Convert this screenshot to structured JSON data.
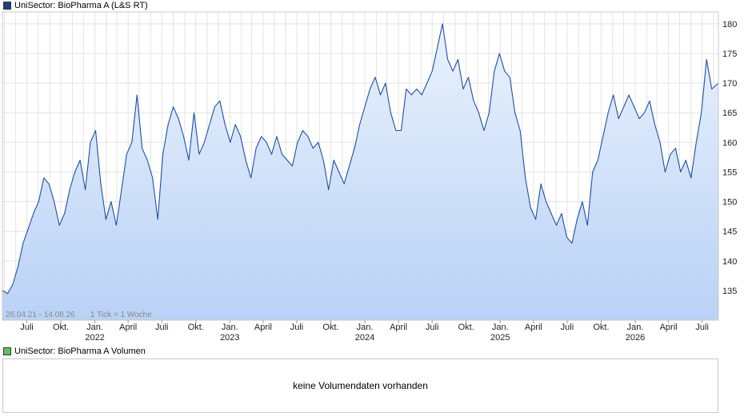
{
  "price_legend": "UniSector: BioPharma A (L&S RT)",
  "volume_legend": "UniSector: BioPharma A Volumen",
  "colors": {
    "line": "#1f4fa8",
    "fill_top": "#eaf2fc",
    "fill_bottom": "#b9d2f6",
    "grid": "#e3e3e3",
    "price_swatch": "#1d3c8a",
    "volume_swatch": "#5cc35c"
  },
  "date_range_note": "26.04.21 - 14.08.26",
  "tick_note": "1 Tick = 1 Woche",
  "volume_message": "keine Volumendaten vorhanden",
  "chart_data": {
    "type": "area",
    "x_range": [
      "2021-04-26",
      "2026-08-14"
    ],
    "ylim": [
      130,
      182
    ],
    "y_ticks": [
      135,
      140,
      145,
      150,
      155,
      160,
      165,
      170,
      175,
      180
    ],
    "x_tick_labels": [
      {
        "label": "Juli",
        "date": "2021-07-01"
      },
      {
        "label": "Okt.",
        "date": "2021-10-01"
      },
      {
        "label": "Jan.",
        "year": "2022",
        "date": "2022-01-01"
      },
      {
        "label": "April",
        "date": "2022-04-01"
      },
      {
        "label": "Juli",
        "date": "2022-07-01"
      },
      {
        "label": "Okt.",
        "date": "2022-10-01"
      },
      {
        "label": "Jan.",
        "year": "2023",
        "date": "2023-01-01"
      },
      {
        "label": "April",
        "date": "2023-04-01"
      },
      {
        "label": "Juli",
        "date": "2023-07-01"
      },
      {
        "label": "Okt.",
        "date": "2023-10-01"
      },
      {
        "label": "Jan.",
        "year": "2024",
        "date": "2024-01-01"
      },
      {
        "label": "April",
        "date": "2024-04-01"
      },
      {
        "label": "Juli",
        "date": "2024-07-01"
      },
      {
        "label": "Okt.",
        "date": "2024-10-01"
      },
      {
        "label": "Jan.",
        "year": "2025",
        "date": "2025-01-01"
      },
      {
        "label": "April",
        "date": "2025-04-01"
      },
      {
        "label": "Juli",
        "date": "2025-07-01"
      },
      {
        "label": "Okt.",
        "date": "2025-10-01"
      },
      {
        "label": "Jan.",
        "year": "2026",
        "date": "2026-01-01"
      },
      {
        "label": "April",
        "date": "2026-04-01"
      },
      {
        "label": "Juli",
        "date": "2026-07-01"
      }
    ],
    "series": [
      {
        "name": "UniSector: BioPharma A (L&S RT)",
        "points": [
          [
            "2021-04-26",
            135
          ],
          [
            "2021-05-10",
            134.5
          ],
          [
            "2021-05-24",
            136
          ],
          [
            "2021-06-07",
            139
          ],
          [
            "2021-06-21",
            143
          ],
          [
            "2021-07-05",
            145.5
          ],
          [
            "2021-07-19",
            148
          ],
          [
            "2021-08-02",
            150
          ],
          [
            "2021-08-16",
            154
          ],
          [
            "2021-08-30",
            153
          ],
          [
            "2021-09-13",
            150
          ],
          [
            "2021-09-27",
            146
          ],
          [
            "2021-10-11",
            148
          ],
          [
            "2021-10-25",
            152
          ],
          [
            "2021-11-08",
            155
          ],
          [
            "2021-11-22",
            157
          ],
          [
            "2021-12-06",
            152
          ],
          [
            "2021-12-20",
            160
          ],
          [
            "2022-01-03",
            162
          ],
          [
            "2022-01-17",
            153
          ],
          [
            "2022-01-31",
            147
          ],
          [
            "2022-02-14",
            150
          ],
          [
            "2022-02-28",
            146
          ],
          [
            "2022-03-14",
            152
          ],
          [
            "2022-03-28",
            158
          ],
          [
            "2022-04-11",
            160
          ],
          [
            "2022-04-25",
            168
          ],
          [
            "2022-05-09",
            159
          ],
          [
            "2022-05-23",
            157
          ],
          [
            "2022-06-06",
            154
          ],
          [
            "2022-06-20",
            147
          ],
          [
            "2022-07-04",
            158
          ],
          [
            "2022-07-18",
            163
          ],
          [
            "2022-08-01",
            166
          ],
          [
            "2022-08-15",
            164
          ],
          [
            "2022-08-29",
            161
          ],
          [
            "2022-09-12",
            157
          ],
          [
            "2022-09-26",
            165
          ],
          [
            "2022-10-10",
            158
          ],
          [
            "2022-10-24",
            160
          ],
          [
            "2022-11-07",
            163
          ],
          [
            "2022-11-21",
            166
          ],
          [
            "2022-12-05",
            167
          ],
          [
            "2022-12-19",
            163
          ],
          [
            "2023-01-02",
            160
          ],
          [
            "2023-01-16",
            163
          ],
          [
            "2023-01-30",
            161
          ],
          [
            "2023-02-13",
            157
          ],
          [
            "2023-02-27",
            154
          ],
          [
            "2023-03-13",
            159
          ],
          [
            "2023-03-27",
            161
          ],
          [
            "2023-04-10",
            160
          ],
          [
            "2023-04-24",
            158
          ],
          [
            "2023-05-08",
            161
          ],
          [
            "2023-05-22",
            158
          ],
          [
            "2023-06-05",
            157
          ],
          [
            "2023-06-19",
            156
          ],
          [
            "2023-07-03",
            160
          ],
          [
            "2023-07-17",
            162
          ],
          [
            "2023-07-31",
            161
          ],
          [
            "2023-08-14",
            159
          ],
          [
            "2023-08-28",
            160
          ],
          [
            "2023-09-11",
            157
          ],
          [
            "2023-09-25",
            152
          ],
          [
            "2023-10-09",
            157
          ],
          [
            "2023-10-23",
            155
          ],
          [
            "2023-11-06",
            153
          ],
          [
            "2023-11-20",
            156
          ],
          [
            "2023-12-04",
            159
          ],
          [
            "2023-12-18",
            163
          ],
          [
            "2024-01-01",
            166
          ],
          [
            "2024-01-15",
            169
          ],
          [
            "2024-01-29",
            171
          ],
          [
            "2024-02-12",
            168
          ],
          [
            "2024-02-26",
            170
          ],
          [
            "2024-03-11",
            165
          ],
          [
            "2024-03-25",
            162
          ],
          [
            "2024-04-08",
            162
          ],
          [
            "2024-04-22",
            169
          ],
          [
            "2024-05-06",
            168
          ],
          [
            "2024-05-20",
            169
          ],
          [
            "2024-06-03",
            168
          ],
          [
            "2024-06-17",
            170
          ],
          [
            "2024-07-01",
            172
          ],
          [
            "2024-07-15",
            176
          ],
          [
            "2024-07-29",
            180
          ],
          [
            "2024-08-12",
            174
          ],
          [
            "2024-08-26",
            172
          ],
          [
            "2024-09-09",
            174
          ],
          [
            "2024-09-23",
            169
          ],
          [
            "2024-10-07",
            171
          ],
          [
            "2024-10-21",
            167
          ],
          [
            "2024-11-04",
            165
          ],
          [
            "2024-11-18",
            162
          ],
          [
            "2024-12-02",
            165
          ],
          [
            "2024-12-16",
            172
          ],
          [
            "2024-12-30",
            175
          ],
          [
            "2025-01-13",
            172
          ],
          [
            "2025-01-27",
            171
          ],
          [
            "2025-02-10",
            165
          ],
          [
            "2025-02-24",
            162
          ],
          [
            "2025-03-10",
            154
          ],
          [
            "2025-03-24",
            149
          ],
          [
            "2025-04-07",
            147
          ],
          [
            "2025-04-21",
            153
          ],
          [
            "2025-05-05",
            150
          ],
          [
            "2025-05-19",
            148
          ],
          [
            "2025-06-02",
            146
          ],
          [
            "2025-06-16",
            148
          ],
          [
            "2025-06-30",
            144
          ],
          [
            "2025-07-14",
            143
          ],
          [
            "2025-07-28",
            147
          ],
          [
            "2025-08-11",
            150
          ],
          [
            "2025-08-25",
            146
          ],
          [
            "2025-09-08",
            155
          ],
          [
            "2025-09-22",
            157
          ],
          [
            "2025-10-06",
            161
          ],
          [
            "2025-10-20",
            165
          ],
          [
            "2025-11-03",
            168
          ],
          [
            "2025-11-17",
            164
          ],
          [
            "2025-12-01",
            166
          ],
          [
            "2025-12-15",
            168
          ],
          [
            "2025-12-29",
            166
          ],
          [
            "2026-01-12",
            164
          ],
          [
            "2026-01-26",
            165
          ],
          [
            "2026-02-09",
            167
          ],
          [
            "2026-02-23",
            163
          ],
          [
            "2026-03-09",
            160
          ],
          [
            "2026-03-23",
            155
          ],
          [
            "2026-04-06",
            158
          ],
          [
            "2026-04-20",
            159
          ],
          [
            "2026-05-04",
            155
          ],
          [
            "2026-05-18",
            157
          ],
          [
            "2026-06-01",
            154
          ],
          [
            "2026-06-15",
            160
          ],
          [
            "2026-06-29",
            165
          ],
          [
            "2026-07-13",
            174
          ],
          [
            "2026-07-27",
            169
          ],
          [
            "2026-08-14",
            170
          ]
        ]
      }
    ]
  }
}
